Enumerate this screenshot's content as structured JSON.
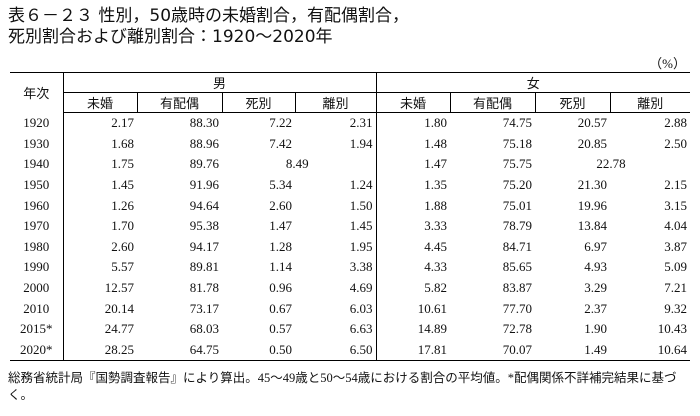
{
  "title": [
    "表６－２３ 性別，50歳時の未婚割合，有配偶割合，",
    "死別割合および離別割合：1920～2020年"
  ],
  "unit": "（%）",
  "table": {
    "year_header": "年次",
    "groups": [
      "男",
      "女"
    ],
    "columns": [
      "未婚",
      "有配偶",
      "死別",
      "離別"
    ],
    "rows": [
      {
        "year": "1920",
        "male": [
          "2.17",
          "88.30",
          "7.22",
          "2.31"
        ],
        "female": [
          "1.80",
          "74.75",
          "20.57",
          "2.88"
        ]
      },
      {
        "year": "1930",
        "male": [
          "1.68",
          "88.96",
          "7.42",
          "1.94"
        ],
        "female": [
          "1.48",
          "75.18",
          "20.85",
          "2.50"
        ]
      },
      {
        "year": "1940",
        "male": [
          "1.75",
          "89.76",
          "8.49"
        ],
        "female": [
          "1.47",
          "75.75",
          "22.78"
        ]
      },
      {
        "year": "1950",
        "male": [
          "1.45",
          "91.96",
          "5.34",
          "1.24"
        ],
        "female": [
          "1.35",
          "75.20",
          "21.30",
          "2.15"
        ]
      },
      {
        "year": "1960",
        "male": [
          "1.26",
          "94.64",
          "2.60",
          "1.50"
        ],
        "female": [
          "1.88",
          "75.01",
          "19.96",
          "3.15"
        ]
      },
      {
        "year": "1970",
        "male": [
          "1.70",
          "95.38",
          "1.47",
          "1.45"
        ],
        "female": [
          "3.33",
          "78.79",
          "13.84",
          "4.04"
        ]
      },
      {
        "year": "1980",
        "male": [
          "2.60",
          "94.17",
          "1.28",
          "1.95"
        ],
        "female": [
          "4.45",
          "84.71",
          "6.97",
          "3.87"
        ]
      },
      {
        "year": "1990",
        "male": [
          "5.57",
          "89.81",
          "1.14",
          "3.38"
        ],
        "female": [
          "4.33",
          "85.65",
          "4.93",
          "5.09"
        ]
      },
      {
        "year": "2000",
        "male": [
          "12.57",
          "81.78",
          "0.96",
          "4.69"
        ],
        "female": [
          "5.82",
          "83.87",
          "3.29",
          "7.21"
        ]
      },
      {
        "year": "2010",
        "male": [
          "20.14",
          "73.17",
          "0.67",
          "6.03"
        ],
        "female": [
          "10.61",
          "77.70",
          "2.37",
          "9.32"
        ]
      },
      {
        "year": "2015*",
        "male": [
          "24.77",
          "68.03",
          "0.57",
          "6.63"
        ],
        "female": [
          "14.89",
          "72.78",
          "1.90",
          "10.43"
        ]
      },
      {
        "year": "2020*",
        "male": [
          "28.25",
          "64.75",
          "0.50",
          "6.50"
        ],
        "female": [
          "17.81",
          "70.07",
          "1.49",
          "10.64"
        ]
      }
    ]
  },
  "footnote": "総務省統計局『国勢調査報告』により算出。45～49歳と50～54歳における割合の平均値。*配偶関係不詳補完結果に基づく。"
}
